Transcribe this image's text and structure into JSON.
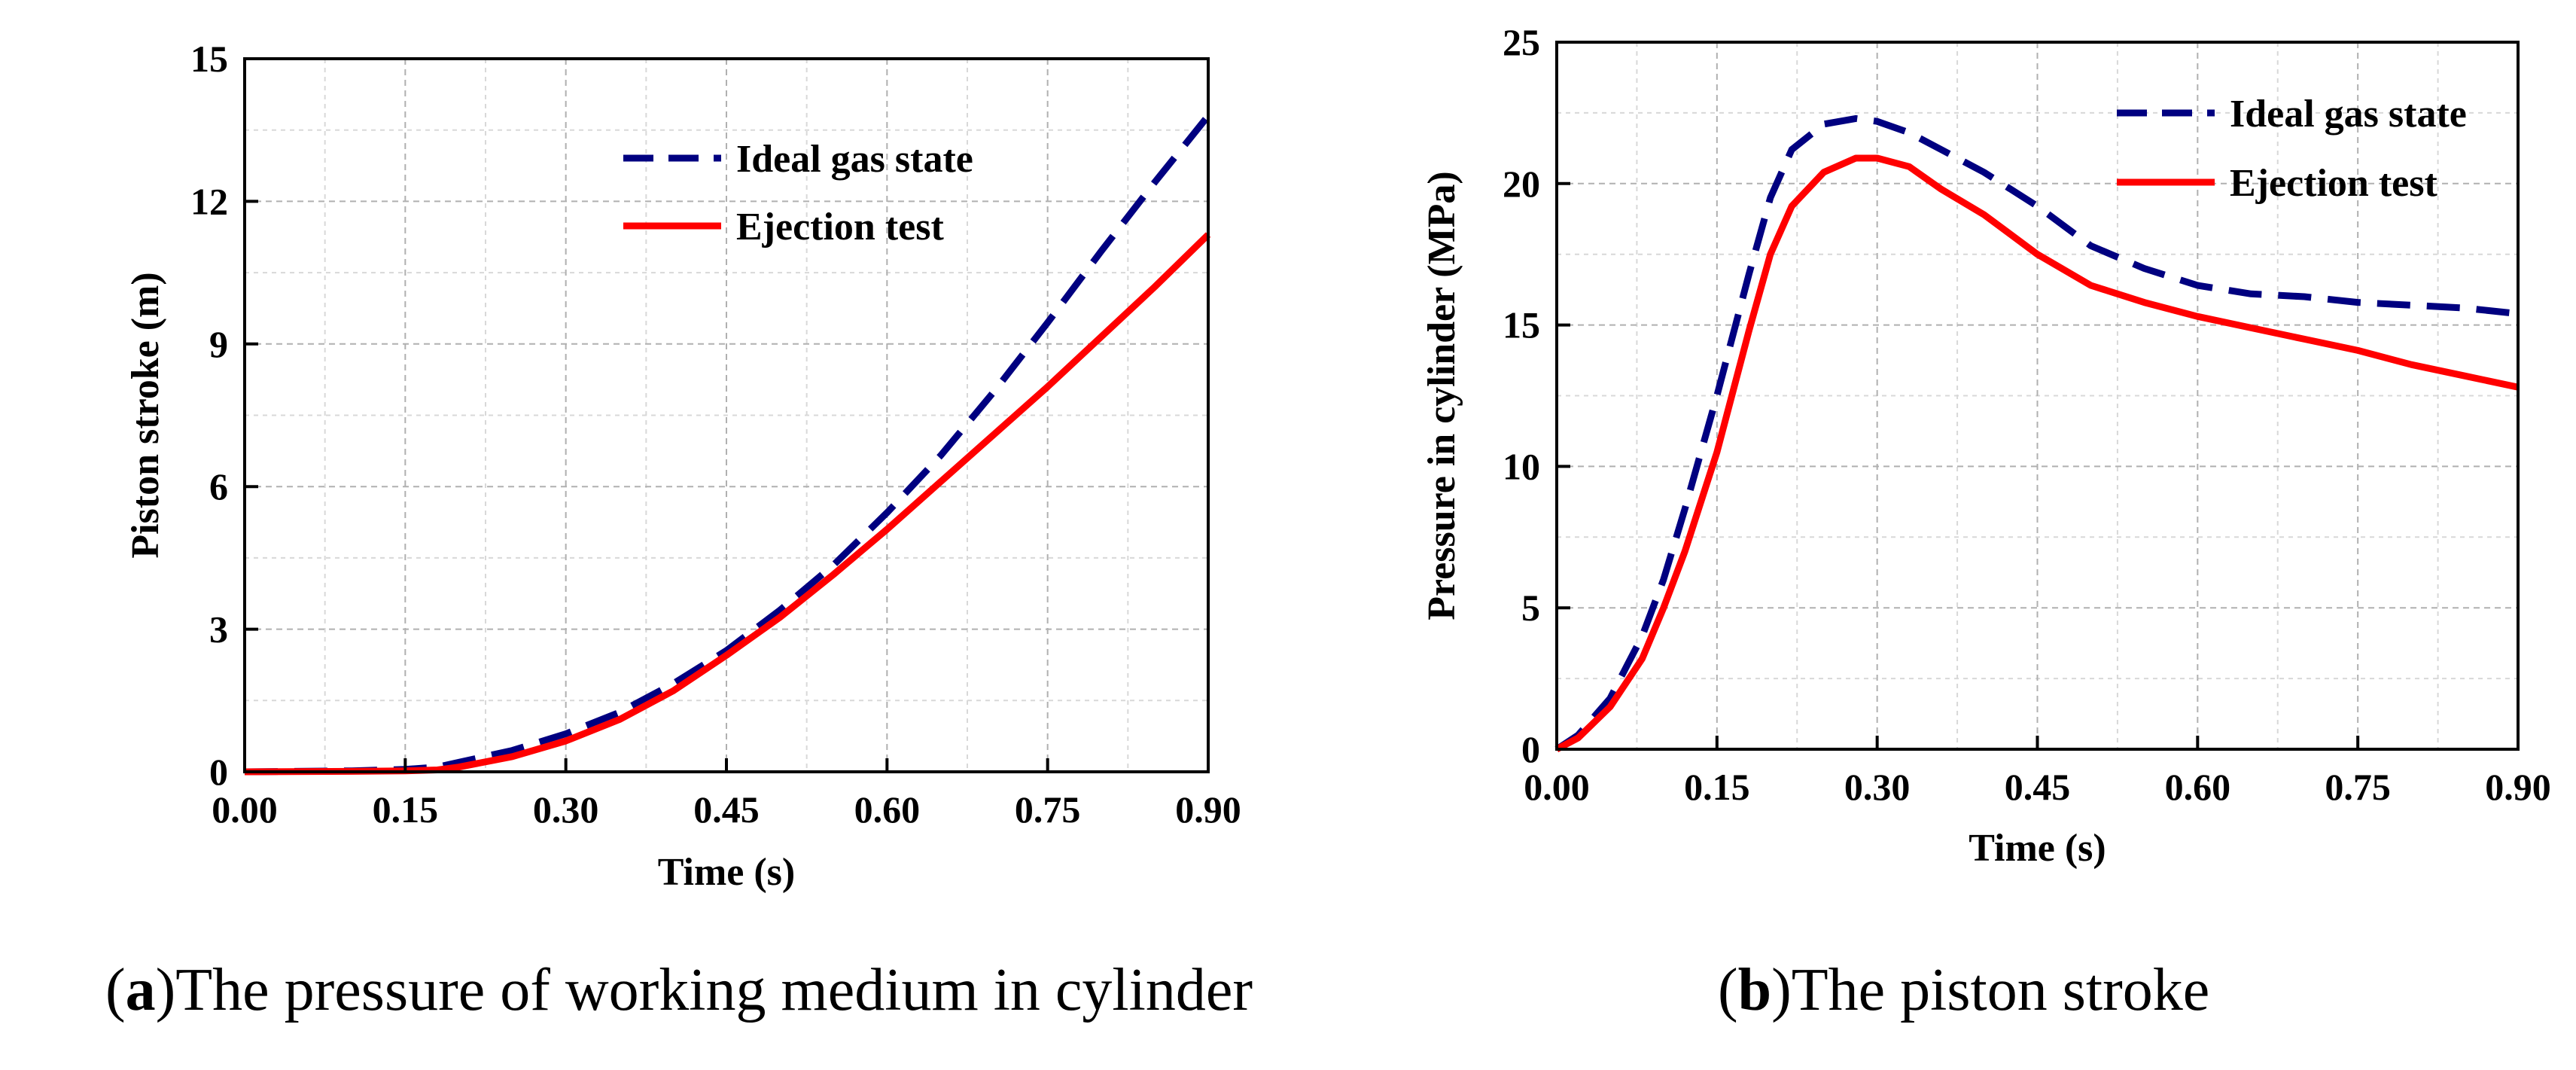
{
  "captions": [
    {
      "open": "(",
      "letter": "a",
      "text": ")The pressure of working medium in cylinder"
    },
    {
      "open": "(",
      "letter": "b",
      "text": ")The piston stroke"
    }
  ],
  "colors": {
    "ideal": "#000080",
    "ejection": "#ff0000",
    "grid": "#b0b0b0",
    "axis": "#000000"
  },
  "chart_data": [
    {
      "type": "line",
      "title": "",
      "xlabel": "Time (s)",
      "ylabel": "Piston stroke (m)",
      "xlim": [
        0,
        0.9
      ],
      "ylim": [
        0,
        15
      ],
      "xticks": [
        0,
        0.15,
        0.3,
        0.45,
        0.6,
        0.75,
        0.9
      ],
      "xtick_labels": [
        "0.00",
        "0.15",
        "0.30",
        "0.45",
        "0.60",
        "0.75",
        "0.90"
      ],
      "yticks": [
        0,
        3,
        6,
        9,
        12,
        15
      ],
      "ytick_labels": [
        "0",
        "3",
        "6",
        "9",
        "12",
        "15"
      ],
      "grid": true,
      "legend_position": "upper-center",
      "series": [
        {
          "name": "Ideal gas state",
          "style": "dashed",
          "x": [
            0,
            0.1,
            0.15,
            0.18,
            0.2,
            0.25,
            0.3,
            0.35,
            0.4,
            0.45,
            0.5,
            0.55,
            0.6,
            0.65,
            0.7,
            0.75,
            0.8,
            0.85,
            0.9
          ],
          "y": [
            0,
            0.02,
            0.05,
            0.1,
            0.2,
            0.45,
            0.8,
            1.25,
            1.85,
            2.55,
            3.4,
            4.35,
            5.45,
            6.65,
            8.0,
            9.45,
            10.95,
            12.4,
            13.8
          ]
        },
        {
          "name": "Ejection test",
          "style": "solid",
          "x": [
            0,
            0.1,
            0.15,
            0.18,
            0.2,
            0.25,
            0.3,
            0.35,
            0.4,
            0.45,
            0.5,
            0.55,
            0.6,
            0.65,
            0.7,
            0.75,
            0.8,
            0.85,
            0.9
          ],
          "y": [
            0,
            0.01,
            0.02,
            0.04,
            0.1,
            0.32,
            0.65,
            1.1,
            1.7,
            2.45,
            3.25,
            4.15,
            5.1,
            6.1,
            7.1,
            8.1,
            9.15,
            10.2,
            11.3
          ]
        }
      ]
    },
    {
      "type": "line",
      "title": "",
      "xlabel": "Time (s)",
      "ylabel": "Pressure in cylinder (MPa)",
      "xlim": [
        0,
        0.9
      ],
      "ylim": [
        0,
        25
      ],
      "xticks": [
        0,
        0.15,
        0.3,
        0.45,
        0.6,
        0.75,
        0.9
      ],
      "xtick_labels": [
        "0.00",
        "0.15",
        "0.30",
        "0.45",
        "0.60",
        "0.75",
        "0.90"
      ],
      "yticks": [
        0,
        5,
        10,
        15,
        20,
        25
      ],
      "ytick_labels": [
        "0",
        "5",
        "10",
        "15",
        "20",
        "25"
      ],
      "grid": true,
      "legend_position": "top-right",
      "series": [
        {
          "name": "Ideal gas state",
          "style": "dashed",
          "x": [
            0,
            0.02,
            0.05,
            0.08,
            0.1,
            0.12,
            0.15,
            0.18,
            0.2,
            0.22,
            0.25,
            0.28,
            0.3,
            0.33,
            0.36,
            0.4,
            0.45,
            0.5,
            0.55,
            0.6,
            0.65,
            0.7,
            0.75,
            0.8,
            0.85,
            0.9
          ],
          "y": [
            0,
            0.5,
            1.8,
            4.0,
            6.0,
            8.5,
            12.5,
            16.8,
            19.5,
            21.2,
            22.1,
            22.3,
            22.2,
            21.8,
            21.2,
            20.4,
            19.2,
            17.8,
            17.0,
            16.4,
            16.1,
            16.0,
            15.8,
            15.7,
            15.6,
            15.4
          ]
        },
        {
          "name": "Ejection test",
          "style": "solid",
          "x": [
            0,
            0.02,
            0.05,
            0.08,
            0.1,
            0.12,
            0.15,
            0.18,
            0.2,
            0.22,
            0.25,
            0.28,
            0.3,
            0.33,
            0.36,
            0.4,
            0.45,
            0.5,
            0.55,
            0.6,
            0.65,
            0.7,
            0.75,
            0.8,
            0.85,
            0.9
          ],
          "y": [
            0,
            0.4,
            1.5,
            3.2,
            5.0,
            7.0,
            10.5,
            14.8,
            17.5,
            19.2,
            20.4,
            20.9,
            20.9,
            20.6,
            19.8,
            18.9,
            17.5,
            16.4,
            15.8,
            15.3,
            14.9,
            14.5,
            14.1,
            13.6,
            13.2,
            12.8
          ]
        }
      ]
    }
  ]
}
